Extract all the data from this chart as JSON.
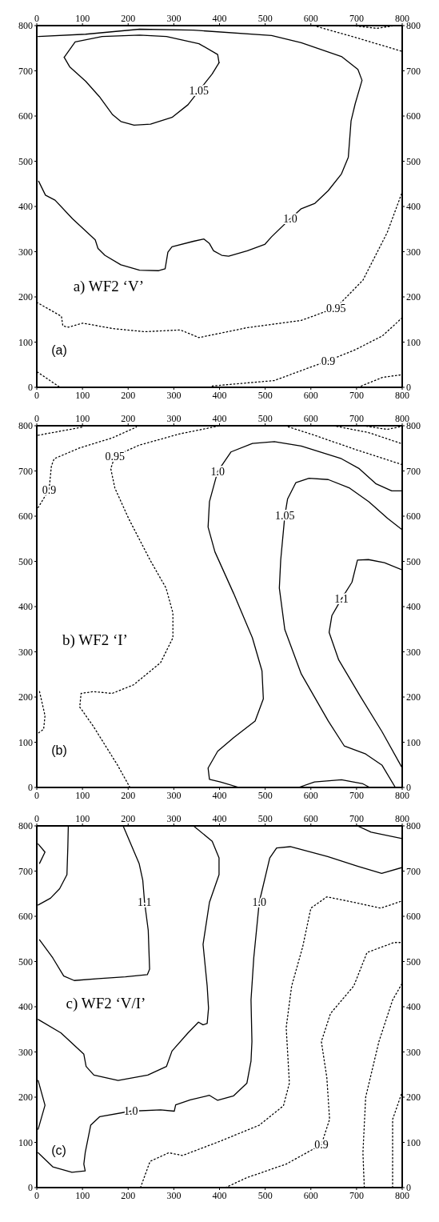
{
  "chart_data": [
    {
      "type": "line",
      "title": "a) WF2 ‘V’",
      "xlim": [
        0,
        800
      ],
      "ylim": [
        0,
        800
      ],
      "xticks": [
        0,
        100,
        200,
        300,
        400,
        500,
        600,
        700,
        800
      ],
      "yticks": [
        0,
        100,
        200,
        300,
        400,
        500,
        600,
        700,
        800
      ],
      "x2lim": [
        0,
        800
      ],
      "x2ticks": [
        0,
        100,
        200,
        300,
        400,
        500,
        600,
        700,
        800
      ],
      "y2lim": [
        0,
        800
      ],
      "y2ticks": [
        0,
        100,
        200,
        300,
        400,
        500,
        600,
        700,
        800
      ],
      "marker": "none",
      "series": [
        {
          "name": "1.0",
          "color": "#000000",
          "line_style": "solid",
          "x": [
            3,
            107,
            225,
            343,
            514,
            579,
            668,
            703,
            712,
            697,
            688,
            682,
            667,
            638,
            609,
            579,
            555,
            514,
            499,
            461,
            420,
            405,
            387,
            378,
            366,
            343,
            296,
            287,
            281,
            267,
            225,
            184,
            149,
            134,
            128,
            78,
            40,
            19,
            4
          ],
          "values": [
            776,
            781,
            792,
            790,
            778,
            762,
            731,
            703,
            679,
            627,
            589,
            509,
            472,
            435,
            407,
            395,
            373,
            333,
            316,
            302,
            290,
            292,
            302,
            318,
            328,
            323,
            311,
            299,
            262,
            258,
            259,
            271,
            292,
            307,
            326,
            373,
            414,
            425,
            456
          ]
        },
        {
          "color": "#000000",
          "line_style": "solid",
          "x": [
            60,
            84,
            143,
            225,
            284,
            355,
            396,
            399
          ],
          "values": [
            730,
            764,
            776,
            779,
            776,
            760,
            736,
            718
          ]
        },
        {
          "name": "1.05",
          "color": "#000000",
          "line_style": "solid",
          "x": [
            60,
            72,
            107,
            137,
            166,
            184,
            213,
            249,
            296,
            331,
            355,
            384,
            399
          ],
          "values": [
            730,
            709,
            677,
            643,
            603,
            588,
            580,
            582,
            597,
            625,
            656,
            693,
            718
          ]
        },
        {
          "name": "0.95",
          "color": "#000000",
          "line_style": "dotted",
          "x": [
            0,
            54,
            57,
            69,
            101,
            166,
            237,
            314,
            355,
            461,
            579,
            655,
            714,
            767,
            800
          ],
          "values": [
            188,
            157,
            136,
            133,
            142,
            130,
            123,
            127,
            110,
            132,
            148,
            176,
            237,
            342,
            432
          ]
        },
        {
          "name": "0.9",
          "color": "#000000",
          "line_style": "dotted",
          "x": [
            384,
            520,
            579,
            638,
            697,
            757,
            800
          ],
          "values": [
            3,
            15,
            37,
            59,
            83,
            114,
            154
          ]
        },
        {
          "color": "#000000",
          "line_style": "dotted",
          "x": [
            1,
            51
          ],
          "values": [
            34,
            0
          ]
        },
        {
          "color": "#000000",
          "line_style": "dotted",
          "x": [
            703,
            757,
            800
          ],
          "values": [
            0,
            22,
            28
          ]
        },
        {
          "color": "#000000",
          "line_style": "dotted",
          "x": [
            606,
            697,
            800
          ],
          "values": [
            800,
            774,
            743
          ]
        },
        {
          "color": "#000000",
          "line_style": "dotted",
          "x": [
            691,
            744,
            785
          ],
          "values": [
            800,
            794,
            800
          ]
        }
      ],
      "annotations": [
        "(a)"
      ]
    },
    {
      "type": "line",
      "title": "b) WF2 ‘I’",
      "xlim": [
        0,
        800
      ],
      "ylim": [
        0,
        800
      ],
      "xticks": [
        0,
        100,
        200,
        300,
        400,
        500,
        600,
        700,
        800
      ],
      "yticks": [
        0,
        100,
        200,
        300,
        400,
        500,
        600,
        700,
        800
      ],
      "x2lim": [
        0,
        800
      ],
      "x2ticks": [
        0,
        100,
        200,
        300,
        400,
        500,
        600,
        700,
        800
      ],
      "y2lim": [
        0,
        800
      ],
      "y2ticks": [
        0,
        100,
        200,
        300,
        400,
        500,
        600,
        700,
        800
      ],
      "marker": "none",
      "series": [
        {
          "name": "0.9",
          "color": "#000000",
          "line_style": "dotted",
          "x": [
            3,
            27,
            32,
            38,
            94,
            165,
            218
          ],
          "values": [
            619,
            659,
            711,
            727,
            751,
            773,
            797
          ]
        },
        {
          "color": "#000000",
          "line_style": "dotted",
          "x": [
            3,
            100
          ],
          "values": [
            779,
            797
          ]
        },
        {
          "name": "0.95",
          "color": "#000000",
          "line_style": "dotted",
          "x": [
            204,
            177,
            124,
            94,
            97,
            124,
            165,
            212,
            271,
            298,
            298,
            283,
            248,
            201,
            171,
            162,
            171,
            224,
            313,
            401
          ],
          "values": [
            0,
            49,
            135,
            178,
            208,
            212,
            208,
            227,
            276,
            331,
            386,
            441,
            503,
            595,
            662,
            705,
            733,
            757,
            782,
            800
          ]
        },
        {
          "color": "#000000",
          "line_style": "dotted",
          "x": [
            6,
            18,
            15,
            3
          ],
          "values": [
            212,
            159,
            129,
            120
          ]
        },
        {
          "color": "#000000",
          "line_style": "dotted",
          "x": [
            543,
            608,
            696,
            800
          ],
          "values": [
            800,
            779,
            748,
            714
          ]
        },
        {
          "color": "#000000",
          "line_style": "dotted",
          "x": [
            649,
            726,
            800
          ],
          "values": [
            800,
            785,
            760
          ]
        },
        {
          "color": "#000000",
          "line_style": "dotted",
          "x": [
            714,
            767,
            797
          ],
          "values": [
            800,
            792,
            798
          ]
        },
        {
          "name": "1.0",
          "color": "#000000",
          "line_style": "solid",
          "x": [
            443,
            402,
            378,
            375,
            396,
            431,
            478,
            496,
            493,
            472,
            431,
            390,
            375,
            378,
            396,
            425,
            472,
            520,
            579,
            667,
            706,
            742,
            777,
            800
          ],
          "values": [
            0,
            12,
            18,
            43,
            80,
            110,
            147,
            196,
            258,
            331,
            429,
            521,
            576,
            632,
            699,
            742,
            761,
            765,
            755,
            727,
            705,
            672,
            656,
            656
          ]
        },
        {
          "color": "#000000",
          "line_style": "solid",
          "x": [
            573,
            608,
            667,
            714,
            729
          ],
          "values": [
            0,
            12,
            17,
            8,
            0
          ]
        },
        {
          "name": "1.05",
          "color": "#000000",
          "line_style": "solid",
          "x": [
            785,
            756,
            720,
            673,
            638,
            579,
            543,
            531,
            534,
            543,
            549,
            567,
            596,
            638,
            685,
            727,
            768,
            800
          ],
          "values": [
            0,
            49,
            74,
            92,
            147,
            251,
            349,
            441,
            503,
            601,
            638,
            674,
            684,
            681,
            662,
            632,
            595,
            570
          ]
        },
        {
          "name": "1.1",
          "color": "#000000",
          "line_style": "solid",
          "x": [
            800,
            756,
            708,
            661,
            640,
            646,
            667,
            690,
            702,
            726,
            761,
            800
          ],
          "values": [
            43,
            123,
            202,
            282,
            343,
            380,
            417,
            454,
            503,
            504,
            497,
            481
          ]
        }
      ],
      "annotations": [
        "(b)"
      ]
    },
    {
      "type": "line",
      "title": "c) WF2 ‘V/I’",
      "xlim": [
        0,
        800
      ],
      "ylim": [
        0,
        800
      ],
      "xticks": [
        0,
        100,
        200,
        300,
        400,
        500,
        600,
        700,
        800
      ],
      "yticks": [
        0,
        100,
        200,
        300,
        400,
        500,
        600,
        700,
        800
      ],
      "x2lim": [
        0,
        800
      ],
      "x2ticks": [
        0,
        100,
        200,
        300,
        400,
        500,
        600,
        700,
        800
      ],
      "y2lim": [
        0,
        800
      ],
      "y2ticks": [
        0,
        100,
        200,
        300,
        400,
        500,
        600,
        700,
        800
      ],
      "marker": "none",
      "series": [
        {
          "color": "#000000",
          "line_style": "solid",
          "x": [
            69,
            68,
            66,
            50,
            30,
            3
          ],
          "values": [
            800,
            754,
            692,
            661,
            640,
            625
          ]
        },
        {
          "color": "#000000",
          "line_style": "solid",
          "x": [
            3,
            18,
            6
          ],
          "values": [
            760,
            742,
            717
          ]
        },
        {
          "name": "1.1",
          "color": "#000000",
          "line_style": "solid",
          "x": [
            189,
            224,
            232,
            236,
            244,
            247,
            242,
            194,
            135,
            82,
            59,
            35,
            6
          ],
          "values": [
            800,
            717,
            680,
            631,
            569,
            483,
            471,
            466,
            462,
            458,
            468,
            508,
            548
          ]
        },
        {
          "color": "#000000",
          "line_style": "solid",
          "x": [
            343,
            384,
            399,
            399,
            378,
            364,
            373,
            376,
            373,
            364,
            354,
            331,
            296,
            284,
            243,
            178,
            125,
            108,
            103,
            53,
            3
          ],
          "values": [
            800,
            766,
            729,
            692,
            631,
            538,
            446,
            397,
            363,
            360,
            366,
            342,
            302,
            268,
            249,
            237,
            249,
            268,
            295,
            342,
            372
          ]
        },
        {
          "name": "1.0",
          "color": "#000000",
          "line_style": "solid",
          "x": [
            3,
            35,
            77,
            106,
            103,
            106,
            118,
            138,
            206,
            271,
            301,
            304,
            336,
            378,
            396,
            431,
            460,
            469,
            471,
            469,
            475,
            487,
            510,
            525,
            555,
            637,
            702,
            755,
            800
          ],
          "values": [
            77,
            46,
            34,
            37,
            52,
            77,
            138,
            157,
            169,
            172,
            169,
            183,
            194,
            204,
            193,
            203,
            231,
            280,
            323,
            415,
            508,
            631,
            729,
            751,
            754,
            732,
            711,
            695,
            708
          ]
        },
        {
          "color": "#000000",
          "line_style": "solid",
          "x": [
            3,
            18,
            3
          ],
          "values": [
            237,
            182,
            129
          ]
        },
        {
          "color": "#000000",
          "line_style": "solid",
          "x": [
            702,
            732,
            800
          ],
          "values": [
            800,
            786,
            772
          ]
        },
        {
          "color": "#000000",
          "line_style": "dotted",
          "x": [
            227,
            248,
            289,
            319,
            400,
            487,
            540,
            553,
            546,
            558,
            582,
            600,
            635,
            694,
            753,
            800
          ],
          "values": [
            0,
            58,
            77,
            71,
            102,
            138,
            181,
            231,
            354,
            446,
            532,
            618,
            643,
            631,
            618,
            634
          ]
        },
        {
          "name": "0.9",
          "color": "#000000",
          "line_style": "dotted",
          "x": [
            413,
            460,
            546,
            623,
            641,
            635,
            623,
            643,
            694,
            723,
            782,
            800
          ],
          "values": [
            0,
            22,
            52,
            95,
            151,
            243,
            323,
            385,
            446,
            520,
            542,
            542
          ]
        },
        {
          "color": "#000000",
          "line_style": "dotted",
          "x": [
            717,
            714,
            720,
            749,
            779,
            800
          ],
          "values": [
            0,
            77,
            200,
            323,
            415,
            452
          ]
        },
        {
          "color": "#000000",
          "line_style": "dotted",
          "x": [
            779,
            779,
            800
          ],
          "values": [
            0,
            151,
            212
          ]
        }
      ],
      "annotations": [
        "(c)"
      ]
    }
  ]
}
